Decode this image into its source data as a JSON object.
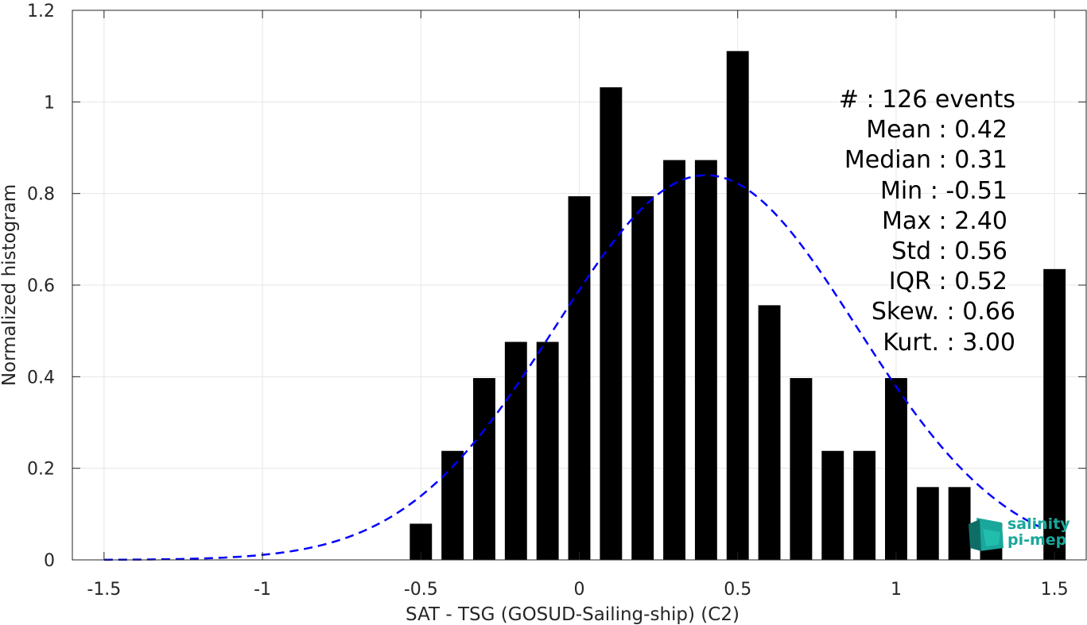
{
  "chart_data": {
    "type": "bar",
    "xlabel": "SAT - TSG (GOSUD-Sailing-ship) (C2)",
    "ylabel": "Normalized histogram",
    "xlim": [
      -1.6,
      1.6
    ],
    "ylim": [
      0,
      1.2
    ],
    "grid": true,
    "bar_width": 0.07,
    "xticks": [
      -1.5,
      -1,
      -0.5,
      0,
      0.5,
      1,
      1.5
    ],
    "xtick_labels": [
      "-1.5",
      "-1",
      "-0.5",
      "0",
      "0.5",
      "1",
      "1.5"
    ],
    "yticks": [
      0,
      0.2,
      0.4,
      0.6,
      0.8,
      1,
      1.2
    ],
    "ytick_labels": [
      "0",
      "0.2",
      "0.4",
      "0.6",
      "0.8",
      "1",
      "1.2"
    ],
    "bars": {
      "x": [
        -0.5,
        -0.4,
        -0.3,
        -0.2,
        -0.1,
        0.0,
        0.1,
        0.2,
        0.3,
        0.4,
        0.5,
        0.6,
        0.7,
        0.8,
        0.9,
        1.0,
        1.1,
        1.2,
        1.3,
        1.5
      ],
      "values": [
        0.079,
        0.238,
        0.397,
        0.476,
        0.476,
        0.794,
        1.032,
        0.794,
        0.873,
        0.873,
        1.111,
        0.556,
        0.397,
        0.238,
        0.238,
        0.397,
        0.159,
        0.159,
        0.079,
        0.635
      ],
      "color": "#000000"
    },
    "fit_curve": {
      "style": "dashed",
      "color": "#0000ff",
      "mean": 0.4,
      "std": 0.475,
      "peak": 0.84,
      "x_range": [
        -1.5,
        1.45
      ]
    },
    "stats": [
      "#  : 126 events",
      "Mean : 0.42",
      "Median : 0.31",
      "Min : -0.51",
      "Max : 2.40",
      "Std : 0.56",
      "IQR : 0.52",
      "Skew. : 0.66",
      "Kurt. : 3.00"
    ],
    "legend_placement": "top-right"
  },
  "logo": {
    "line1": "salinity",
    "line2": "pi-mep",
    "colors": [
      "#1aa79b",
      "#0e6e66",
      "#23c3b1"
    ]
  }
}
